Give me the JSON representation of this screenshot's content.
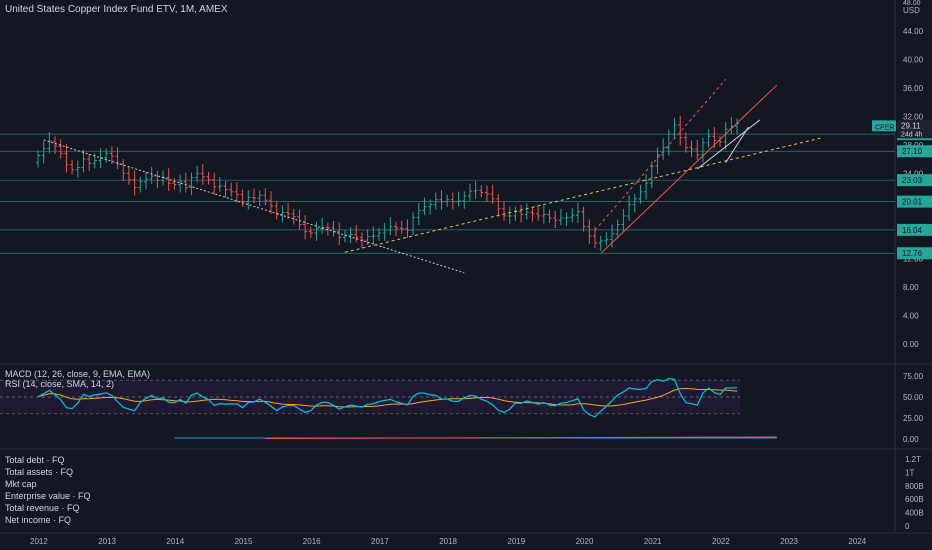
{
  "header": {
    "title": "United States Copper Index Fund ETV, 1M, AMEX",
    "currency": "USD",
    "top_partial": "48.00"
  },
  "price_axis": {
    "ticks": [
      "44.00",
      "40.00",
      "36.00",
      "32.00",
      "28.00",
      "24.00",
      "20.00",
      "16.00",
      "12.00",
      "8.00",
      "4.00",
      "0.00"
    ],
    "ylim": [
      -2,
      47
    ]
  },
  "time_axis": {
    "labels": [
      "2012",
      "2013",
      "2014",
      "2015",
      "2016",
      "2017",
      "2018",
      "2019",
      "2020",
      "2021",
      "2022",
      "2023",
      "2024"
    ]
  },
  "level_badges": [
    {
      "label": "29.50",
      "value": 29.5,
      "color": "#26a69a"
    },
    {
      "label": "27.10",
      "value": 27.1,
      "color": "#26a69a"
    },
    {
      "label": "23.03",
      "value": 23.03,
      "color": "#26a69a"
    },
    {
      "label": "20.01",
      "value": 20.01,
      "color": "#26a69a"
    },
    {
      "label": "16.04",
      "value": 16.04,
      "color": "#26a69a"
    },
    {
      "label": "12.76",
      "value": 12.76,
      "color": "#26a69a"
    }
  ],
  "symbol_badge": {
    "symbol": "CPER",
    "price": "29.11",
    "countdown": "24d 4h"
  },
  "indicators": {
    "macd": "MACD (12, 26, close, 9, EMA, EMA)",
    "rsi": "RSI (14, close, SMA, 14, 2)",
    "rsi_ticks": [
      "75.00",
      "50.00",
      "25.00"
    ],
    "macd_ticks": [
      "0.00"
    ]
  },
  "financials": {
    "labels": [
      "Total debt · FQ",
      "Total assets · FQ",
      "Mkt cap",
      "Enterprise value · FQ",
      "Total revenue · FQ",
      "Net income · FQ"
    ],
    "ticks": [
      "1.2T",
      "1T",
      "800B",
      "600B",
      "400B",
      "0"
    ]
  },
  "colors": {
    "up": "#26a69a",
    "down": "#ef5350",
    "rsi": "#2196f3",
    "rsi_ma": "#f5a623",
    "rsi_cyan": "#00bcd4"
  },
  "chart_data": {
    "type": "candlestick",
    "frequency": "monthly",
    "start": "2012-01",
    "close_approx": [
      26.5,
      27.5,
      28.5,
      27.8,
      26.8,
      25.2,
      24.5,
      24.8,
      26.0,
      25.4,
      25.8,
      26.2,
      26.8,
      26.4,
      25.3,
      24.0,
      23.1,
      22.0,
      22.8,
      23.2,
      23.6,
      23.0,
      23.4,
      22.6,
      22.4,
      22.8,
      22.0,
      23.4,
      24.0,
      23.5,
      23.1,
      22.1,
      22.2,
      21.7,
      21.4,
      21.0,
      20.0,
      20.6,
      20.5,
      20.9,
      20.2,
      19.4,
      18.2,
      18.5,
      18.3,
      17.9,
      16.8,
      15.8,
      15.6,
      16.2,
      16.4,
      16.3,
      15.8,
      15.0,
      15.3,
      15.4,
      15.0,
      14.6,
      15.1,
      15.2,
      15.6,
      16.0,
      16.5,
      16.3,
      16.2,
      16.0,
      17.8,
      18.8,
      19.3,
      19.6,
      20.3,
      20.0,
      20.3,
      20.0,
      20.1,
      20.8,
      21.5,
      21.6,
      21.3,
      21.1,
      20.4,
      19.0,
      18.0,
      18.0,
      18.6,
      18.2,
      18.5,
      18.3,
      18.0,
      18.2,
      17.7,
      17.4,
      17.7,
      17.8,
      18.1,
      18.6,
      16.5,
      15.2,
      14.2,
      14.5,
      14.7,
      15.5,
      16.8,
      18.0,
      19.6,
      20.4,
      21.4,
      22.6,
      25.0,
      26.6,
      27.6,
      29.5,
      30.8,
      29.0,
      27.6,
      27.4,
      26.6,
      28.3,
      29.2,
      28.6,
      28.4,
      30.2,
      30.6,
      31.0
    ],
    "rsi_ylim": [
      0,
      100
    ],
    "macd_zero": 0.0
  }
}
